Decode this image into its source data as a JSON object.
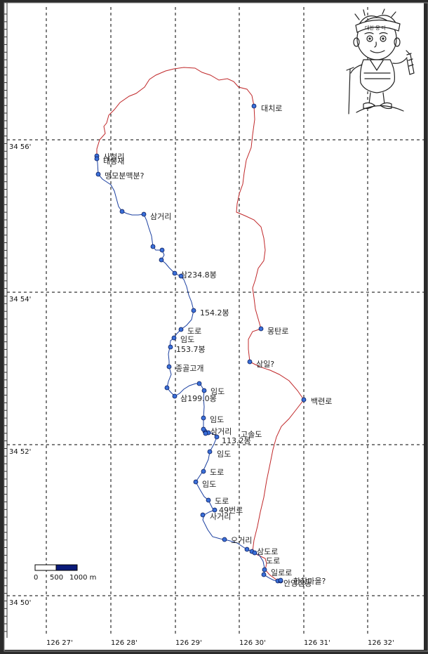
{
  "map": {
    "lat_labels": [
      "34 56'",
      "34 54'",
      "34 52'",
      "34 50'"
    ],
    "lon_labels": [
      "126 27'",
      "126 28'",
      "126 29'",
      "126 30'",
      "126 31'",
      "126 32'"
    ],
    "scale": {
      "zero": "0",
      "mid": "500",
      "end": "1000 m"
    },
    "colors": {
      "track_blue": "#1a3fa0",
      "track_red": "#c0282a",
      "waypoint": "#3a6fd8",
      "grid": "#000000"
    },
    "waypoints": [
      {
        "label": "대치로"
      },
      {
        "label": "사철리"
      },
      {
        "label": "태봉재"
      },
      {
        "label": "맹모분맥분?"
      },
      {
        "label": "삼거리"
      },
      {
        "label": "삼234.8봉"
      },
      {
        "label": "154.2봉"
      },
      {
        "label": "몽탄로"
      },
      {
        "label": "도로"
      },
      {
        "label": "임도"
      },
      {
        "label": "153.7봉"
      },
      {
        "label": "삼일?"
      },
      {
        "label": "종골고개"
      },
      {
        "label": "백련로"
      },
      {
        "label": "임도"
      },
      {
        "label": "삼199.0봉"
      },
      {
        "label": "임도"
      },
      {
        "label": "삼거리"
      },
      {
        "label": "113.2봉"
      },
      {
        "label": "고솔도"
      },
      {
        "label": "임도"
      },
      {
        "label": "도로"
      },
      {
        "label": "임도"
      },
      {
        "label": "도로"
      },
      {
        "label": "49번로"
      },
      {
        "label": "사거리"
      },
      {
        "label": "오거리"
      },
      {
        "label": "삼도로"
      },
      {
        "label": "도로"
      },
      {
        "label": "일로로"
      },
      {
        "label": "안영점동"
      },
      {
        "label": "한창마을?"
      }
    ],
    "mascot": "hiker-mascot-icon",
    "mascot_text": "대한 몽 다"
  }
}
